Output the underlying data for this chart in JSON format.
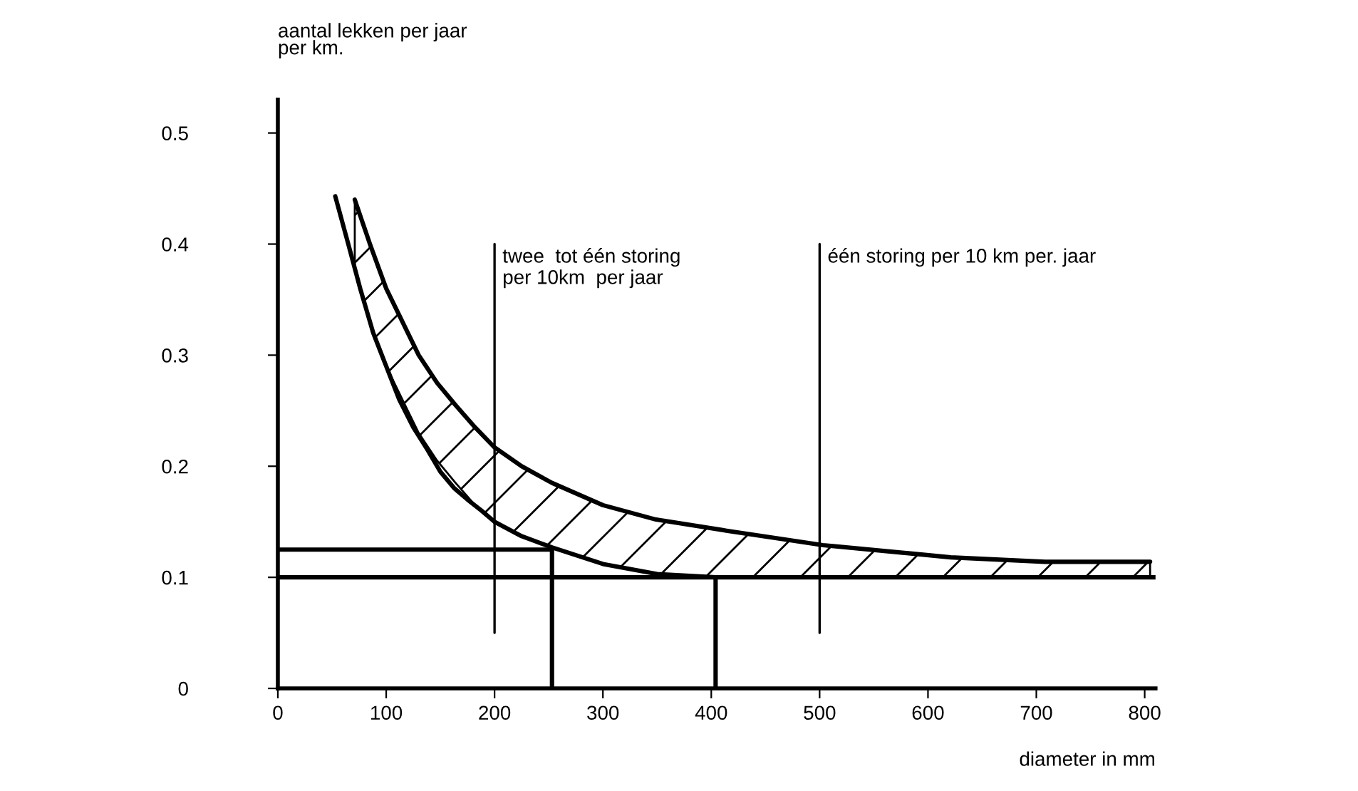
{
  "chart_data": {
    "type": "line",
    "xlabel": "diameter in mm",
    "ylabel": "aantal lekken per jaar\nper km.",
    "xlim": [
      0,
      810
    ],
    "ylim": [
      0,
      0.53
    ],
    "xticks": [
      0,
      100,
      200,
      300,
      400,
      500,
      600,
      700,
      800
    ],
    "yticks": [
      0,
      0.1,
      0.2,
      0.3,
      0.4,
      0.5
    ],
    "grid": false,
    "marker": "none",
    "line_style": "solid",
    "series": [
      {
        "color": "#000000",
        "x": [
          71,
          85,
          100,
          115,
          130,
          147,
          164,
          182,
          200,
          225,
          253,
          300,
          349,
          414,
          503,
          621,
          708,
          805
        ],
        "values": [
          0.44,
          0.4,
          0.36,
          0.33,
          0.3,
          0.275,
          0.255,
          0.235,
          0.217,
          0.2,
          0.185,
          0.165,
          0.152,
          0.142,
          0.129,
          0.118,
          0.114,
          0.114
        ],
        "lower": [
          0.38,
          0.33,
          0.29,
          0.26,
          0.23,
          0.205,
          0.185,
          0.165,
          0.15,
          0.137,
          0.127,
          0.112,
          0.103,
          0.1,
          0.1,
          0.1,
          0.1,
          0.1
        ],
        "upper": [
          0.44,
          0.4,
          0.36,
          0.33,
          0.3,
          0.275,
          0.255,
          0.235,
          0.217,
          0.2,
          0.185,
          0.165,
          0.152,
          0.142,
          0.129,
          0.118,
          0.114,
          0.114
        ]
      },
      {
        "color": "#000000",
        "x": [
          53,
          65,
          76,
          88,
          100,
          112,
          125,
          138,
          150,
          163,
          175,
          188,
          200,
          225,
          253,
          300,
          350,
          404
        ],
        "values": [
          0.443,
          0.4,
          0.36,
          0.32,
          0.29,
          0.26,
          0.235,
          0.215,
          0.195,
          0.18,
          0.17,
          0.16,
          0.15,
          0.137,
          0.127,
          0.112,
          0.103,
          0.1
        ]
      },
      {
        "color": "#000000",
        "x": [
          0,
          810
        ],
        "values": [
          0.1,
          0.1
        ]
      },
      {
        "color": "#000000",
        "x": [
          0,
          253,
          253
        ],
        "values": [
          0.125,
          0.125,
          0
        ]
      },
      {
        "color": "#000000",
        "x": [
          404,
          404
        ],
        "values": [
          0.1,
          0
        ]
      },
      {
        "color": "#000000",
        "x": [
          200,
          200
        ],
        "values": [
          0.05,
          0.4
        ]
      },
      {
        "color": "#000000",
        "x": [
          500,
          500
        ],
        "values": [
          0.05,
          0.4
        ]
      }
    ],
    "annotations": [
      {
        "text": "twee  tot één storing\nper 10km  per jaar",
        "x": 200,
        "y": 0.4
      },
      {
        "text": "één storing per 10 km per. jaar",
        "x": 500,
        "y": 0.4
      }
    ]
  }
}
